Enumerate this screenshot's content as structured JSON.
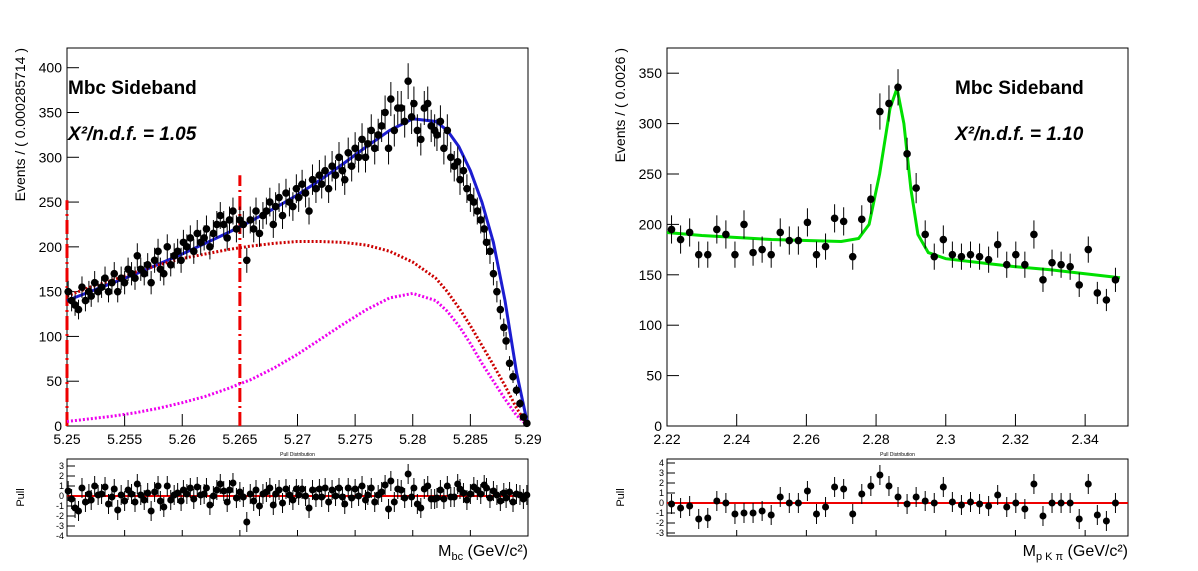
{
  "chart_data": [
    {
      "type": "fit",
      "title": "Mbc Sideband",
      "fit_label": "X²/n.d.f. = 1.05",
      "y_label": "Events / ( 0.000285714 )",
      "xlim": [
        5.25,
        5.29
      ],
      "ylim": [
        0,
        422
      ],
      "xticks": [
        5.25,
        5.255,
        5.26,
        5.265,
        5.27,
        5.275,
        5.28,
        5.285,
        5.29
      ],
      "yticks": [
        0,
        50,
        100,
        150,
        200,
        250,
        300,
        350,
        400
      ],
      "points": {
        "color": "#000000",
        "x": [
          5.2501,
          5.2504,
          5.2507,
          5.251,
          5.2513,
          5.2516,
          5.2519,
          5.2521,
          5.2524,
          5.2527,
          5.253,
          5.2533,
          5.2536,
          5.2539,
          5.2541,
          5.2544,
          5.2547,
          5.255,
          5.2553,
          5.2556,
          5.2559,
          5.2561,
          5.2564,
          5.2567,
          5.257,
          5.2573,
          5.2576,
          5.2579,
          5.2581,
          5.2584,
          5.2587,
          5.259,
          5.2593,
          5.2596,
          5.2599,
          5.2601,
          5.2604,
          5.2607,
          5.261,
          5.2613,
          5.2616,
          5.2619,
          5.2621,
          5.2624,
          5.2627,
          5.263,
          5.2633,
          5.2636,
          5.2639,
          5.2641,
          5.2644,
          5.2647,
          5.265,
          5.2653,
          5.2656,
          5.2659,
          5.2662,
          5.2664,
          5.2667,
          5.267,
          5.2673,
          5.2676,
          5.2679,
          5.2681,
          5.2684,
          5.2687,
          5.269,
          5.2693,
          5.2696,
          5.2699,
          5.2701,
          5.2704,
          5.2707,
          5.271,
          5.2713,
          5.2716,
          5.2719,
          5.2721,
          5.2724,
          5.2727,
          5.273,
          5.2733,
          5.2736,
          5.2739,
          5.2741,
          5.2744,
          5.2747,
          5.275,
          5.2753,
          5.2756,
          5.2759,
          5.2761,
          5.2764,
          5.2767,
          5.277,
          5.2773,
          5.2776,
          5.2779,
          5.2781,
          5.2784,
          5.2787,
          5.279,
          5.2793,
          5.2796,
          5.2799,
          5.2801,
          5.2804,
          5.2807,
          5.281,
          5.2813,
          5.2816,
          5.2819,
          5.2821,
          5.2824,
          5.2827,
          5.283,
          5.2833,
          5.2836,
          5.2839,
          5.2841,
          5.2844,
          5.2847,
          5.285,
          5.2853,
          5.2856,
          5.2859,
          5.2862,
          5.2864,
          5.2867,
          5.287,
          5.2873,
          5.2876,
          5.2879,
          5.2881,
          5.2884,
          5.2887,
          5.289,
          5.2893,
          5.2896,
          5.2899
        ],
        "values": [
          150,
          140,
          135,
          130,
          155,
          140,
          150,
          145,
          160,
          150,
          155,
          165,
          150,
          160,
          170,
          150,
          165,
          160,
          175,
          170,
          165,
          190,
          175,
          170,
          180,
          160,
          185,
          195,
          175,
          170,
          200,
          180,
          190,
          195,
          185,
          205,
          200,
          210,
          195,
          215,
          205,
          210,
          220,
          200,
          215,
          225,
          235,
          225,
          210,
          230,
          240,
          220,
          230,
          225,
          185,
          230,
          220,
          240,
          215,
          235,
          240,
          250,
          225,
          245,
          255,
          235,
          260,
          250,
          245,
          265,
          255,
          270,
          260,
          240,
          275,
          265,
          280,
          270,
          285,
          265,
          290,
          280,
          300,
          285,
          275,
          305,
          290,
          310,
          300,
          320,
          300,
          315,
          330,
          310,
          325,
          335,
          350,
          310,
          365,
          330,
          355,
          355,
          340,
          385,
          345,
          360,
          330,
          320,
          355,
          360,
          335,
          330,
          325,
          340,
          310,
          330,
          300,
          290,
          295,
          275,
          285,
          265,
          255,
          250,
          240,
          230,
          220,
          205,
          195,
          170,
          150,
          130,
          110,
          95,
          70,
          55,
          40,
          25,
          10,
          3
        ],
        "errors": [
          12,
          12,
          12,
          11,
          12,
          12,
          12,
          12,
          13,
          12,
          12,
          13,
          12,
          13,
          13,
          12,
          13,
          13,
          13,
          13,
          13,
          14,
          13,
          13,
          13,
          13,
          14,
          14,
          13,
          13,
          14,
          13,
          14,
          14,
          14,
          14,
          14,
          14,
          14,
          15,
          14,
          14,
          15,
          14,
          15,
          15,
          15,
          15,
          14,
          15,
          15,
          15,
          15,
          15,
          14,
          15,
          15,
          15,
          15,
          15,
          15,
          16,
          15,
          16,
          16,
          15,
          16,
          16,
          16,
          16,
          16,
          16,
          16,
          15,
          17,
          16,
          17,
          16,
          17,
          16,
          17,
          17,
          17,
          17,
          17,
          17,
          17,
          18,
          17,
          18,
          17,
          18,
          18,
          18,
          18,
          18,
          19,
          18,
          19,
          18,
          19,
          19,
          18,
          20,
          19,
          19,
          18,
          18,
          19,
          19,
          18,
          18,
          18,
          18,
          18,
          18,
          17,
          17,
          17,
          17,
          17,
          16,
          16,
          16,
          15,
          15,
          15,
          14,
          14,
          13,
          12,
          11,
          10,
          10,
          8,
          7,
          6,
          5,
          3,
          2
        ]
      },
      "curves": [
        {
          "color": "#1c1cd0",
          "style": "solid",
          "x": [
            5.25,
            5.252,
            5.254,
            5.256,
            5.258,
            5.26,
            5.262,
            5.264,
            5.266,
            5.268,
            5.27,
            5.272,
            5.274,
            5.276,
            5.278,
            5.28,
            5.282,
            5.283,
            5.284,
            5.285,
            5.286,
            5.287,
            5.288,
            5.289,
            5.29
          ],
          "values": [
            140,
            150,
            160,
            170,
            181,
            192,
            204,
            216,
            229,
            243,
            258,
            275,
            293,
            312,
            330,
            343,
            340,
            330,
            312,
            285,
            250,
            205,
            140,
            60,
            0
          ]
        },
        {
          "color": "#cc0000",
          "style": "dotted",
          "x": [
            5.25,
            5.252,
            5.254,
            5.256,
            5.258,
            5.26,
            5.262,
            5.264,
            5.266,
            5.268,
            5.27,
            5.272,
            5.274,
            5.276,
            5.278,
            5.28,
            5.282,
            5.283,
            5.284,
            5.285,
            5.286,
            5.287,
            5.288,
            5.289,
            5.29
          ],
          "values": [
            145,
            155,
            163,
            172,
            180,
            187,
            192,
            197,
            201,
            204,
            206,
            206,
            205,
            202,
            195,
            183,
            165,
            150,
            132,
            112,
            90,
            68,
            45,
            20,
            0
          ]
        },
        {
          "color": "#ee00ee",
          "style": "dotted",
          "x": [
            5.25,
            5.252,
            5.254,
            5.256,
            5.258,
            5.26,
            5.262,
            5.264,
            5.266,
            5.268,
            5.27,
            5.272,
            5.274,
            5.276,
            5.278,
            5.28,
            5.282,
            5.283,
            5.284,
            5.285,
            5.286,
            5.287,
            5.288,
            5.289,
            5.29
          ],
          "values": [
            5,
            8,
            11,
            15,
            20,
            26,
            33,
            42,
            52,
            65,
            80,
            97,
            114,
            130,
            143,
            148,
            140,
            128,
            112,
            92,
            70,
            50,
            30,
            12,
            0
          ]
        }
      ],
      "vlines": {
        "color": "#ee0000",
        "x": [
          5.25,
          5.265
        ],
        "top": [
          252,
          280
        ]
      },
      "pull": {
        "title": "Pull Distribution",
        "y_label": "Pull",
        "x_label": {
          "main": "M",
          "sub": "bc",
          "unit": " (GeV/c²)"
        },
        "ylim": [
          -4,
          3.7
        ],
        "yticks": [
          -4,
          -3,
          -2,
          -1,
          0,
          1,
          2,
          3
        ],
        "reference": 0,
        "reference_color": "#ee0000",
        "error": 1,
        "values": [
          0.5,
          -0.3,
          -1.2,
          -1.5,
          0.8,
          -0.6,
          0.2,
          -0.4,
          1.0,
          0.1,
          0.2,
          0.9,
          -0.8,
          -0.1,
          0.7,
          -1.4,
          0.1,
          -0.5,
          0.6,
          0.2,
          -0.6,
          1.2,
          0.1,
          -0.4,
          0.3,
          -1.5,
          0.4,
          1.0,
          -0.5,
          -1.1,
          1.0,
          -0.4,
          0.1,
          0.3,
          -0.5,
          0.6,
          0.2,
          0.8,
          -0.3,
          0.9,
          0.1,
          0.2,
          0.8,
          -0.9,
          0.0,
          0.6,
          1.2,
          0.5,
          -0.6,
          0.6,
          1.3,
          -0.2,
          0.4,
          -0.1,
          -2.6,
          0.2,
          -0.5,
          0.6,
          -1.0,
          0.2,
          0.4,
          0.8,
          -0.9,
          0.2,
          0.6,
          -0.7,
          0.7,
          0.1,
          -0.4,
          0.7,
          0.1,
          0.7,
          0.0,
          -1.2,
          0.6,
          -0.1,
          0.7,
          -0.1,
          0.8,
          -0.6,
          0.6,
          0.0,
          0.8,
          -0.1,
          -0.8,
          0.8,
          -0.2,
          0.7,
          0.0,
          1.0,
          -0.4,
          0.1,
          0.8,
          -0.6,
          0.1,
          0.4,
          1.1,
          -1.3,
          1.5,
          -0.6,
          0.7,
          0.6,
          -0.2,
          2.2,
          -0.1,
          0.8,
          -0.8,
          -1.2,
          0.7,
          1.0,
          -0.3,
          -0.3,
          -0.2,
          0.6,
          -0.3,
          1.0,
          -0.1,
          -0.1,
          1.2,
          0.7,
          0.3,
          -0.4,
          0.2,
          0.9,
          0.6,
          0.2,
          1.1,
          0.8,
          -0.2,
          0.5,
          0.1,
          -0.5,
          0.3,
          -0.2,
          0.4,
          -0.6,
          0.2,
          0.1,
          -0.3,
          0.1
        ]
      }
    },
    {
      "type": "fit",
      "title": "Mbc Sideband",
      "fit_label": "X²/n.d.f. = 1.10",
      "y_label": "Events / ( 0.0026 )",
      "xlim": [
        2.22,
        2.3523
      ],
      "ylim": [
        0,
        375
      ],
      "xticks": [
        2.22,
        2.24,
        2.26,
        2.28,
        2.3,
        2.32,
        2.34
      ],
      "yticks": [
        0,
        50,
        100,
        150,
        200,
        250,
        300,
        350
      ],
      "points": {
        "color": "#000000",
        "x": [
          2.2213,
          2.2239,
          2.2265,
          2.2291,
          2.2317,
          2.2343,
          2.2369,
          2.2395,
          2.2421,
          2.2447,
          2.2473,
          2.2499,
          2.2525,
          2.2551,
          2.2577,
          2.2603,
          2.2629,
          2.2655,
          2.2681,
          2.2707,
          2.2733,
          2.2759,
          2.2785,
          2.2811,
          2.2837,
          2.2863,
          2.2889,
          2.2915,
          2.2941,
          2.2967,
          2.2993,
          2.3019,
          2.3045,
          2.3071,
          2.3097,
          2.3123,
          2.3149,
          2.3175,
          2.3201,
          2.3227,
          2.3253,
          2.3279,
          2.3305,
          2.3331,
          2.3357,
          2.3383,
          2.3409,
          2.3435,
          2.3461,
          2.3487
        ],
        "values": [
          195,
          185,
          192,
          170,
          170,
          195,
          190,
          170,
          200,
          172,
          175,
          170,
          192,
          184,
          184,
          202,
          170,
          178,
          206,
          203,
          168,
          205,
          225,
          312,
          320,
          336,
          270,
          236,
          190,
          168,
          185,
          170,
          168,
          170,
          168,
          165,
          180,
          160,
          170,
          160,
          190,
          145,
          162,
          160,
          158,
          140,
          175,
          132,
          125,
          145
        ],
        "errors": [
          14,
          14,
          14,
          13,
          13,
          14,
          14,
          13,
          14,
          13,
          13,
          13,
          14,
          14,
          14,
          14,
          13,
          13,
          14,
          14,
          13,
          14,
          15,
          18,
          18,
          18,
          16,
          15,
          14,
          13,
          14,
          13,
          13,
          13,
          13,
          13,
          13,
          13,
          13,
          13,
          14,
          12,
          13,
          13,
          13,
          12,
          13,
          11,
          11,
          12
        ]
      },
      "curves": [
        {
          "color": "#00e000",
          "style": "solid",
          "x": [
            2.22,
            2.23,
            2.24,
            2.25,
            2.26,
            2.27,
            2.275,
            2.278,
            2.281,
            2.284,
            2.286,
            2.288,
            2.29,
            2.292,
            2.295,
            2.3,
            2.31,
            2.32,
            2.33,
            2.34,
            2.35
          ],
          "values": [
            192,
            189,
            187,
            185,
            184,
            183,
            186,
            200,
            250,
            315,
            335,
            300,
            235,
            190,
            172,
            166,
            162,
            158,
            155,
            151,
            147
          ]
        }
      ],
      "pull": {
        "title": "Pull Distribution",
        "y_label": "Pull",
        "x_label": {
          "main": "M",
          "sub": "p K π",
          "unit": " (GeV/c²)"
        },
        "ylim": [
          -3.3,
          4.4
        ],
        "yticks": [
          -3,
          -2,
          -1,
          0,
          1,
          2,
          3,
          4
        ],
        "reference": 0,
        "reference_color": "#ee0000",
        "error": 1,
        "values": [
          -0.1,
          -0.5,
          -0.3,
          -1.6,
          -1.5,
          0.2,
          0.0,
          -1.1,
          -1.0,
          -1.0,
          -0.8,
          -1.2,
          0.6,
          0.0,
          0.0,
          1.2,
          -1.1,
          -0.4,
          1.6,
          1.4,
          -1.1,
          0.9,
          1.7,
          2.8,
          1.7,
          0.6,
          -0.1,
          0.6,
          0.2,
          0.0,
          1.6,
          0.1,
          -0.2,
          0.1,
          -0.1,
          -0.3,
          0.8,
          -0.4,
          0.0,
          -0.6,
          1.9,
          -1.3,
          0.0,
          0.0,
          0.0,
          -1.6,
          1.9,
          -1.2,
          -1.8,
          0.0
        ]
      }
    }
  ]
}
